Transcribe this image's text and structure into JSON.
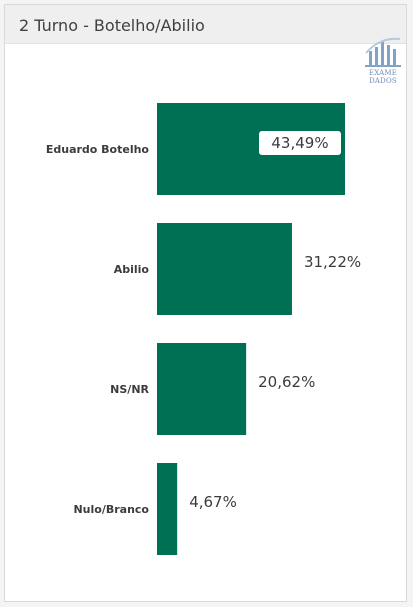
{
  "title": "2 Turno - Botelho/Abilio",
  "logo": {
    "icon": "building-columns-logo",
    "line1": "EXAME",
    "line2": "DADOS"
  },
  "colors": {
    "bar": "#007055",
    "label_box": "#ffffff",
    "text": "#3c3c3c"
  },
  "chart_data": {
    "type": "bar",
    "orientation": "horizontal",
    "categories": [
      "Eduardo Botelho",
      "Abilio",
      "NS/NR",
      "Nulo/Branco"
    ],
    "values": [
      43.49,
      31.22,
      20.62,
      4.67
    ],
    "value_labels": [
      "43,49%",
      "31,22%",
      "20,62%",
      "4,67%"
    ],
    "title": "2 Turno - Botelho/Abilio",
    "xlabel": "",
    "ylabel": "",
    "grid": false,
    "legend": "none"
  }
}
